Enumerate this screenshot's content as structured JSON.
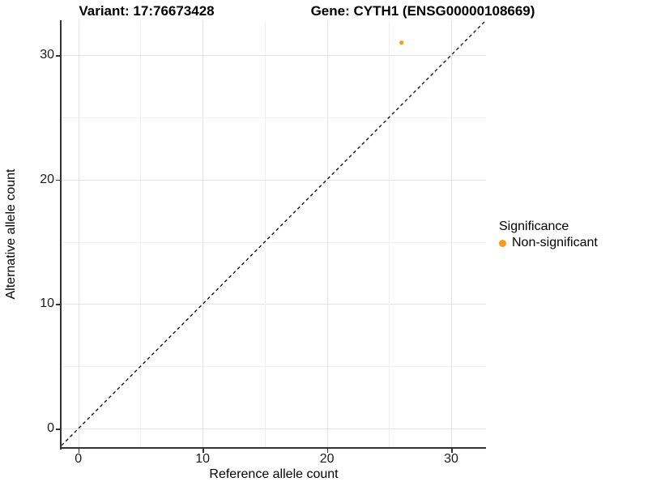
{
  "chart_data": {
    "type": "scatter",
    "title_left": "Variant: 17:76673428",
    "title_right": "Gene: CYTH1 (ENSG00000108669)",
    "xlabel": "Reference allele count",
    "ylabel": "Alternative allele count",
    "xlim": [
      -1.35,
      32.8
    ],
    "ylim": [
      -1.55,
      32.8
    ],
    "x_ticks": [
      0,
      10,
      20,
      30
    ],
    "y_ticks": [
      0,
      10,
      20,
      30
    ],
    "grid_on": true,
    "grid_step": 5,
    "points": [
      {
        "x": 26,
        "y": 31,
        "significance": "Non-significant"
      }
    ],
    "identity_line": {
      "slope": 1,
      "intercept": 0,
      "style": "dashed",
      "color": "#000000"
    },
    "legend": {
      "title": "Significance",
      "position": "right",
      "items": [
        {
          "label": "Non-significant",
          "color": "#F8981D"
        }
      ]
    }
  },
  "colors": {
    "point": "#F8981D",
    "axis_line": "#333333",
    "grid_major": "#e4e4e4",
    "grid_minor": "#f0f0f0",
    "tick": "#333333",
    "text": "#000000",
    "background": "#ffffff"
  }
}
